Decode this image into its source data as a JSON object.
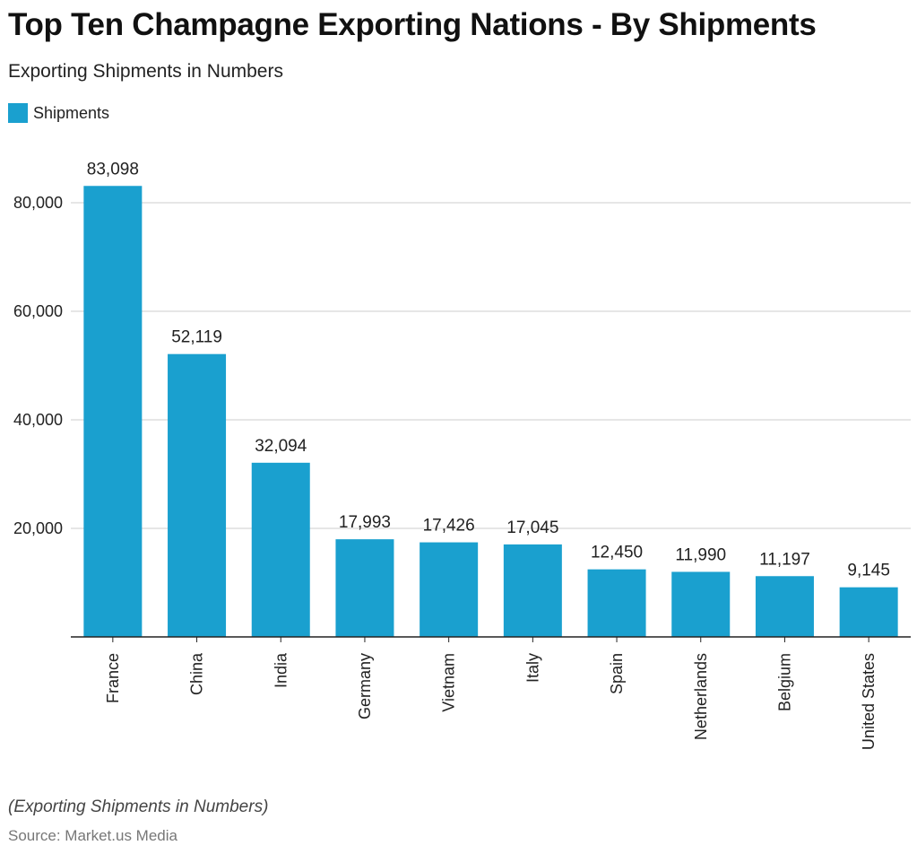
{
  "title": "Top Ten Champagne Exporting Nations - By Shipments",
  "subtitle": "Exporting Shipments in Numbers",
  "legend": {
    "label": "Shipments",
    "color": "#1aa0cf"
  },
  "footnote": "(Exporting Shipments in Numbers)",
  "source": "Source: Market.us Media",
  "chart_data": {
    "type": "bar",
    "title": "Top Ten Champagne Exporting Nations - By Shipments",
    "subtitle": "Exporting Shipments in Numbers",
    "xlabel": "",
    "ylabel": "",
    "categories": [
      "France",
      "China",
      "India",
      "Germany",
      "Vietnam",
      "Italy",
      "Spain",
      "Netherlands",
      "Belgium",
      "United States"
    ],
    "series": [
      {
        "name": "Shipments",
        "color": "#1aa0cf",
        "values": [
          83098,
          52119,
          32094,
          17993,
          17426,
          17045,
          12450,
          11990,
          11197,
          9145
        ],
        "labels": [
          "83,098",
          "52,119",
          "32,094",
          "17,993",
          "17,426",
          "17,045",
          "12,450",
          "11,990",
          "11,197",
          "9,145"
        ]
      }
    ],
    "yticks": [
      20000,
      40000,
      60000,
      80000
    ],
    "ytick_labels": [
      "20,000",
      "40,000",
      "60,000",
      "80,000"
    ],
    "ylim": [
      0,
      91000
    ],
    "grid": true,
    "legend_position": "top-left",
    "x_label_rotation": "vertical"
  }
}
